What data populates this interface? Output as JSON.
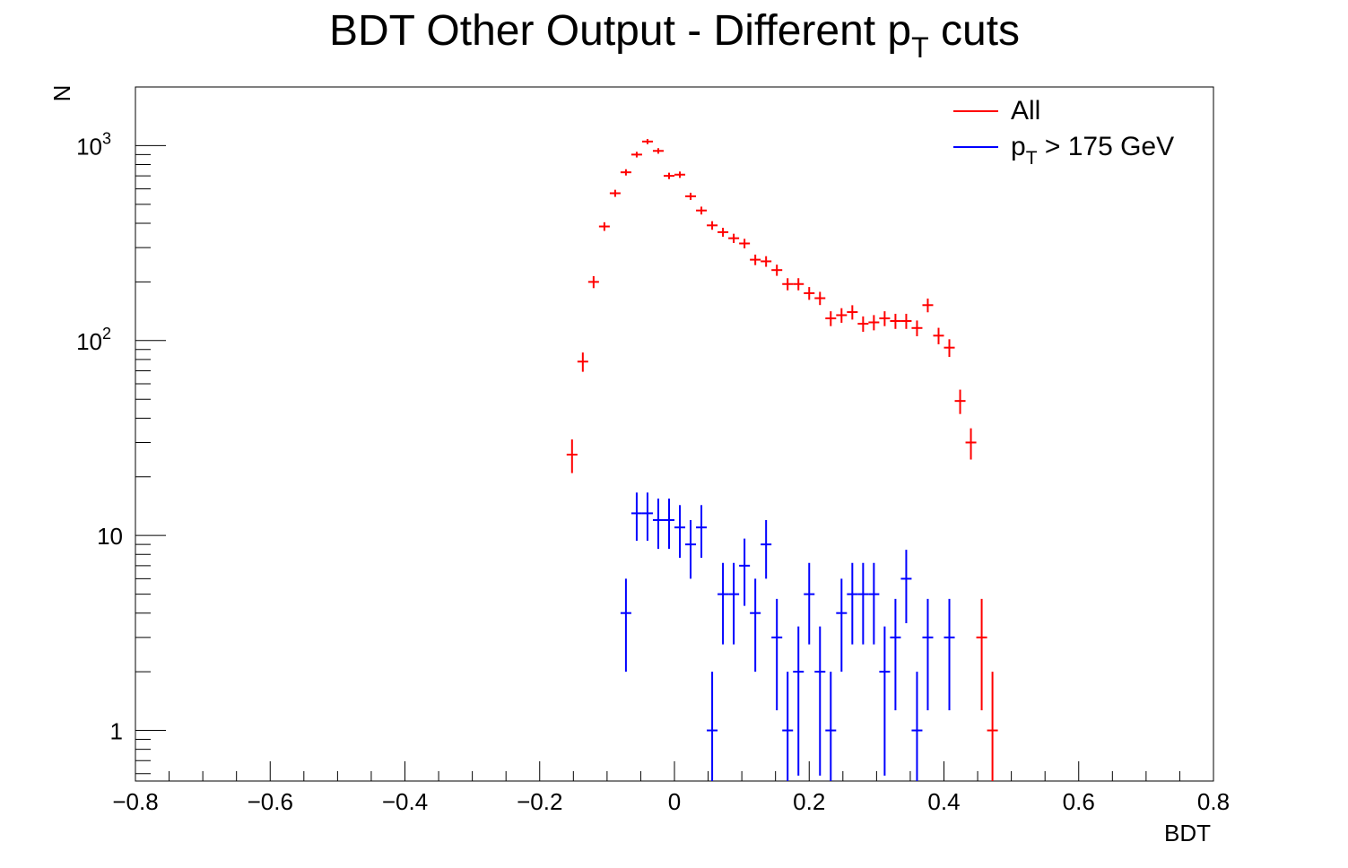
{
  "chart_data": {
    "type": "scatter",
    "title": "BDT Other Output - Different p",
    "title_sub": "T",
    "title_suffix": " cuts",
    "xlabel": "BDT",
    "ylabel": "N",
    "xlim": [
      -0.8,
      0.8
    ],
    "ylim": [
      0.55,
      2000
    ],
    "yscale": "log",
    "grid": false,
    "legend_position": "top-right",
    "x_ticks": [
      "−0.8",
      "−0.6",
      "−0.4",
      "−0.2",
      "0",
      "0.2",
      "0.4",
      "0.6",
      "0.8"
    ],
    "y_ticks": [
      {
        "value": 1,
        "label": "1",
        "sup": ""
      },
      {
        "value": 10,
        "label": "10",
        "sup": ""
      },
      {
        "value": 100,
        "label": "10",
        "sup": "2"
      },
      {
        "value": 1000,
        "label": "10",
        "sup": "3"
      }
    ],
    "series": [
      {
        "name": "All",
        "color": "#ff0000",
        "x": [
          -0.152,
          -0.136,
          -0.12,
          -0.104,
          -0.088,
          -0.072,
          -0.056,
          -0.04,
          -0.024,
          -0.008,
          0.008,
          0.024,
          0.04,
          0.056,
          0.072,
          0.088,
          0.104,
          0.12,
          0.136,
          0.152,
          0.168,
          0.184,
          0.2,
          0.216,
          0.232,
          0.248,
          0.264,
          0.28,
          0.296,
          0.312,
          0.328,
          0.344,
          0.36,
          0.376,
          0.392,
          0.408,
          0.424,
          0.44,
          0.456,
          0.472
        ],
        "y": [
          26,
          78,
          200,
          385,
          570,
          730,
          900,
          1050,
          940,
          700,
          710,
          550,
          465,
          390,
          360,
          335,
          315,
          260,
          255,
          230,
          195,
          195,
          175,
          165,
          130,
          135,
          140,
          122,
          124,
          130,
          126,
          126,
          116,
          152,
          106,
          92,
          49,
          30,
          3,
          1
        ]
      },
      {
        "name": "p_T > 175 GeV",
        "name_main": "p",
        "name_sub": "T",
        "name_suffix": " > 175 GeV",
        "color": "#0000ff",
        "x": [
          -0.072,
          -0.056,
          -0.04,
          -0.024,
          -0.008,
          0.008,
          0.024,
          0.04,
          0.056,
          0.072,
          0.088,
          0.104,
          0.12,
          0.136,
          0.152,
          0.168,
          0.184,
          0.2,
          0.216,
          0.232,
          0.248,
          0.264,
          0.28,
          0.296,
          0.312,
          0.328,
          0.344,
          0.36,
          0.376,
          0.408
        ],
        "y": [
          4,
          13,
          13,
          12,
          12,
          11,
          9,
          11,
          1,
          5,
          5,
          7,
          4,
          9,
          3,
          1,
          2,
          5,
          2,
          1,
          4,
          5,
          5,
          5,
          2,
          3,
          6,
          1,
          3,
          3
        ]
      }
    ]
  }
}
